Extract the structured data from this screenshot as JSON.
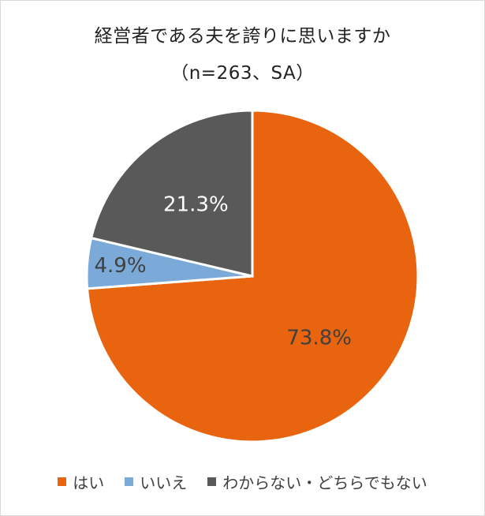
{
  "title_line1": "経営者である夫を誇りに思いますか",
  "title_line2": "（n=263、SA）",
  "chart_data": {
    "type": "pie",
    "start_angle_deg": 0,
    "direction": "clockwise",
    "slices": [
      {
        "name": "はい",
        "value": 73.8,
        "label": "73.8%",
        "color": "#E8640F",
        "label_color": "#404040"
      },
      {
        "name": "いいえ",
        "value": 4.9,
        "label": "4.9%",
        "color": "#7BAAD8",
        "label_color": "#404040"
      },
      {
        "name": "わからない・どちらでもない",
        "value": 21.3,
        "label": "21.3%",
        "color": "#595959",
        "label_color": "#ffffff"
      }
    ],
    "legend_position": "bottom"
  }
}
